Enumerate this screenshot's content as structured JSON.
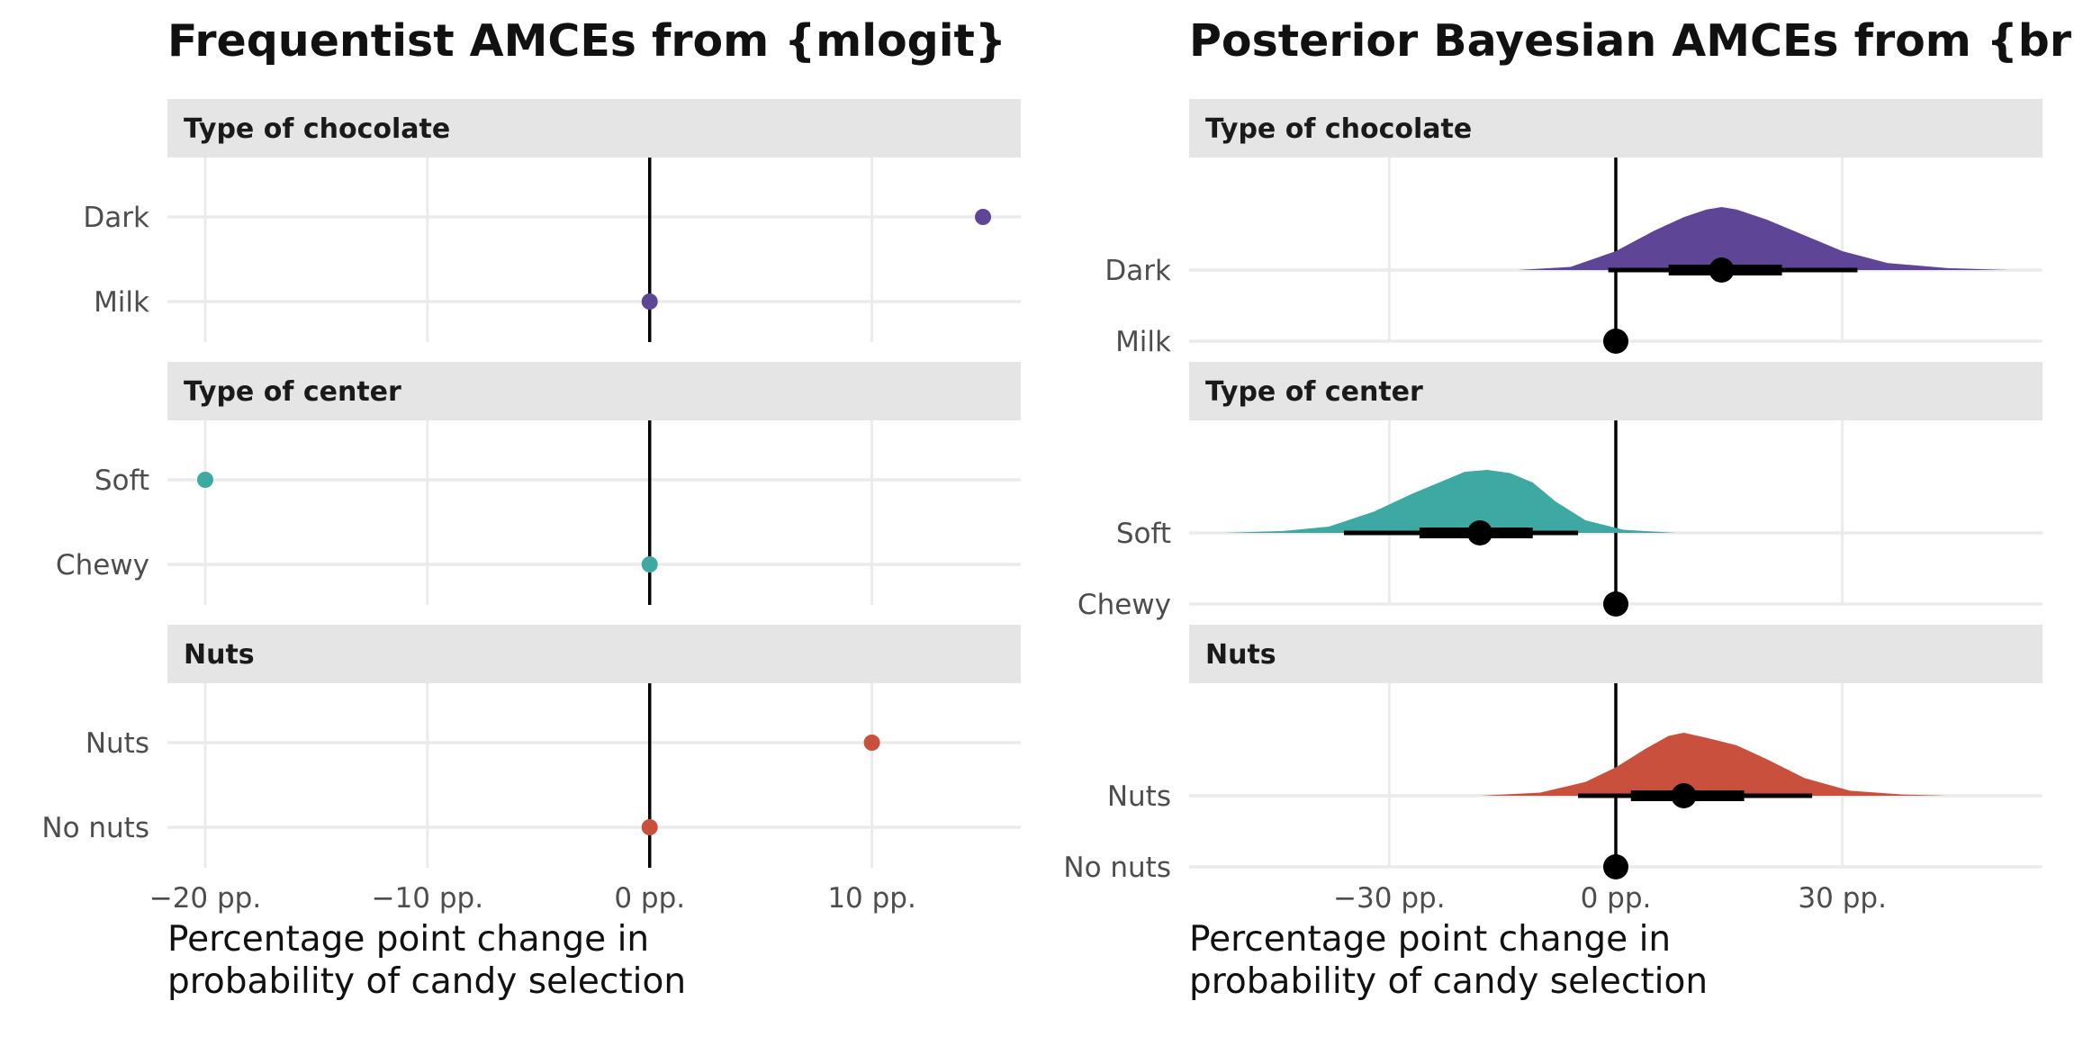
{
  "chart_data": [
    {
      "type": "scatter",
      "title": "Frequentist AMCEs from {mlogit}",
      "xlabel": [
        "Percentage point change in",
        "probability of candy selection"
      ],
      "xlim": [
        -21.7,
        16.7
      ],
      "xticks": [
        -20,
        -10,
        0,
        10
      ],
      "xtick_labels": [
        "−20 pp.",
        "−10 pp.",
        "0 pp.",
        "10 pp."
      ],
      "reference_line": 0,
      "grid": true,
      "panels": [
        {
          "label": "Type of chocolate",
          "color": "#5e4596",
          "rows": [
            {
              "label": "Dark",
              "estimate": 15
            },
            {
              "label": "Milk",
              "estimate": 0
            }
          ]
        },
        {
          "label": "Type of center",
          "color": "#3ea9a3",
          "rows": [
            {
              "label": "Soft",
              "estimate": -20
            },
            {
              "label": "Chewy",
              "estimate": 0
            }
          ]
        },
        {
          "label": "Nuts",
          "color": "#c9503c",
          "rows": [
            {
              "label": "Nuts",
              "estimate": 10
            },
            {
              "label": "No nuts",
              "estimate": 0
            }
          ]
        }
      ]
    },
    {
      "type": "area",
      "title": "Posterior Bayesian AMCEs from {brms}",
      "xlabel": [
        "Percentage point change in",
        "probability of candy selection"
      ],
      "xlim": [
        -56.5,
        56.5
      ],
      "xticks": [
        -30,
        0,
        30
      ],
      "xtick_labels": [
        "−30 pp.",
        "0 pp.",
        "30 pp."
      ],
      "reference_line": 0,
      "grid": true,
      "panels": [
        {
          "label": "Type of chocolate",
          "color": "#5e4596",
          "rows": [
            {
              "label": "Dark",
              "median": 14,
              "interval_66": [
                7,
                22
              ],
              "interval_95": [
                -1,
                32
              ],
              "density": {
                "x": [
                  -13,
                  -6,
                  0,
                  5,
                  9,
                  12,
                  14,
                  16,
                  20,
                  25,
                  30,
                  36,
                  44,
                  52
                ],
                "y": [
                  0.0,
                  0.05,
                  0.3,
                  0.62,
                  0.84,
                  0.96,
                  1.0,
                  0.96,
                  0.8,
                  0.55,
                  0.3,
                  0.11,
                  0.03,
                  0.0
                ]
              }
            },
            {
              "label": "Milk",
              "median": 0
            }
          ]
        },
        {
          "label": "Type of center",
          "color": "#3ea9a3",
          "rows": [
            {
              "label": "Soft",
              "median": -18,
              "interval_66": [
                -26,
                -11
              ],
              "interval_95": [
                -36,
                -5
              ],
              "density": {
                "x": [
                  -52,
                  -44,
                  -38,
                  -32,
                  -27,
                  -23,
                  -20,
                  -17,
                  -14,
                  -11,
                  -8,
                  -4,
                  1,
                  8
                ],
                "y": [
                  0.0,
                  0.03,
                  0.1,
                  0.34,
                  0.62,
                  0.82,
                  0.97,
                  1.0,
                  0.95,
                  0.8,
                  0.5,
                  0.2,
                  0.05,
                  0.0
                ]
              }
            },
            {
              "label": "Chewy",
              "median": 0
            }
          ]
        },
        {
          "label": "Nuts",
          "color": "#c9503c",
          "rows": [
            {
              "label": "Nuts",
              "median": 9,
              "interval_66": [
                2,
                17
              ],
              "interval_95": [
                -5,
                26
              ],
              "density": {
                "x": [
                  -18,
                  -10,
                  -4,
                  0,
                  4,
                  7,
                  9,
                  12,
                  16,
                  20,
                  25,
                  31,
                  38,
                  44
                ],
                "y": [
                  0.0,
                  0.05,
                  0.22,
                  0.45,
                  0.75,
                  0.95,
                  1.0,
                  0.92,
                  0.8,
                  0.58,
                  0.28,
                  0.08,
                  0.02,
                  0.0
                ]
              }
            },
            {
              "label": "No nuts",
              "median": 0
            }
          ]
        }
      ]
    }
  ]
}
